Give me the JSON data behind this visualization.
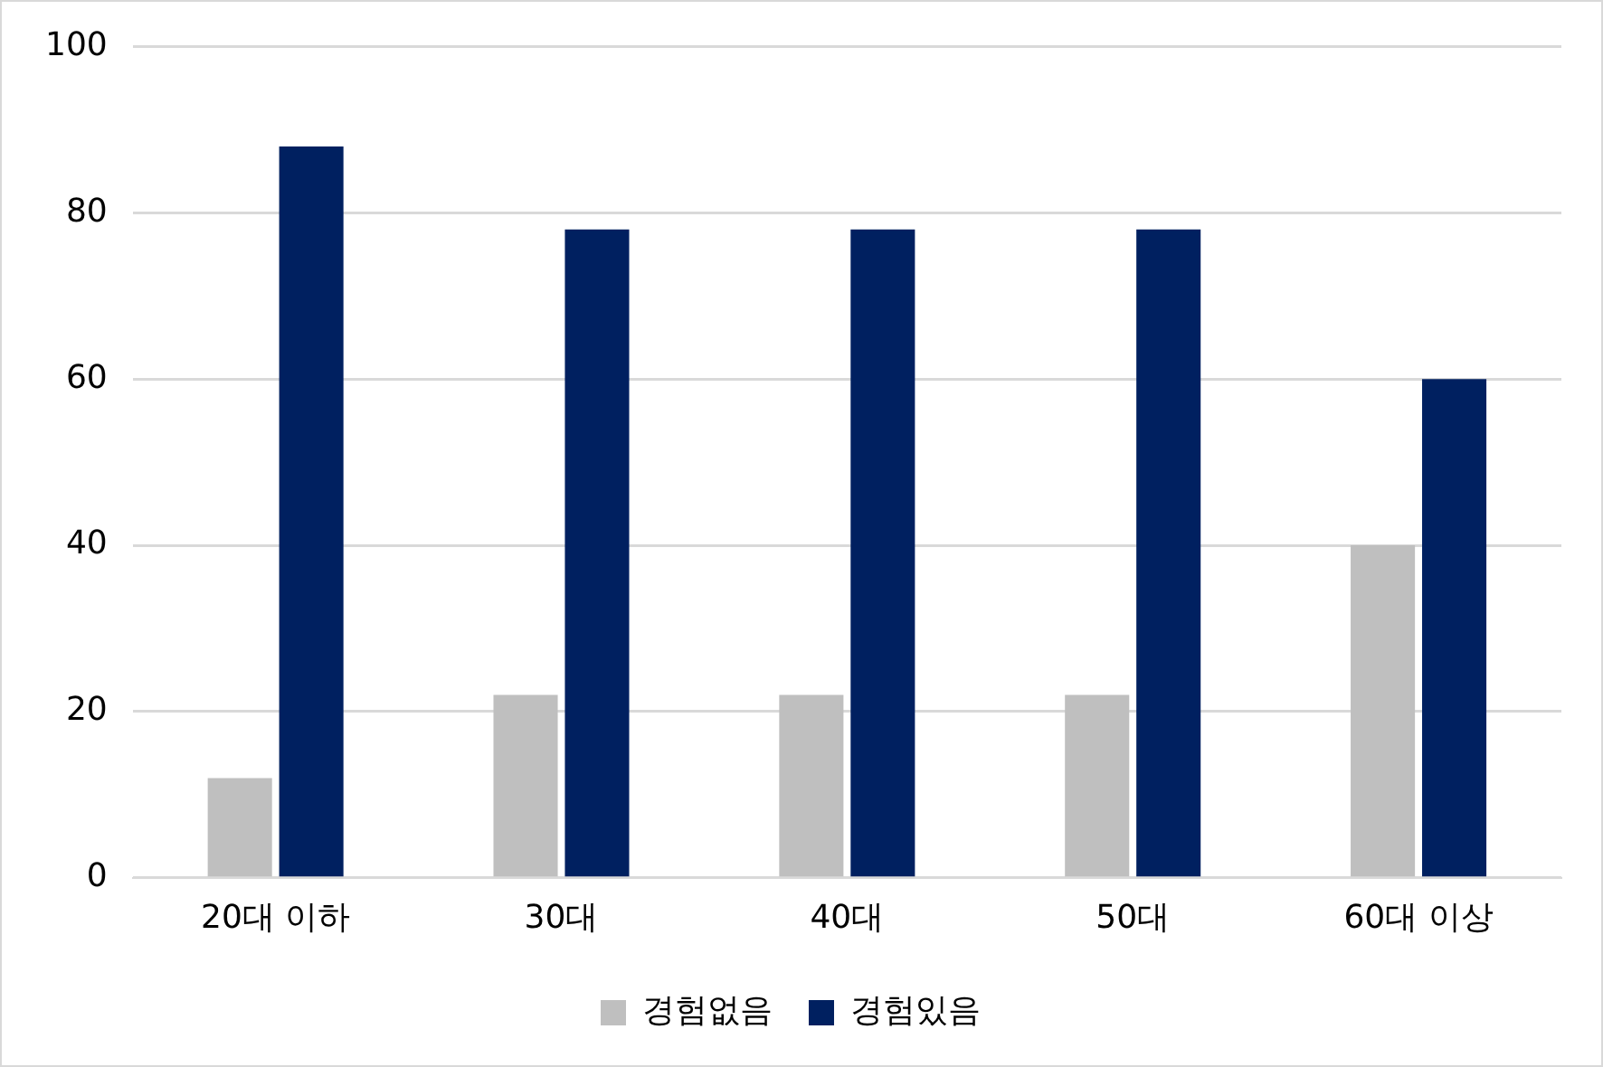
{
  "chart_data": {
    "type": "bar",
    "categories": [
      "20대 이하",
      "30대",
      "40대",
      "50대",
      "60대 이상"
    ],
    "series": [
      {
        "name": "경험없음",
        "color": "#bfbfbf",
        "values": [
          12,
          22,
          22,
          22,
          40
        ]
      },
      {
        "name": "경험있음",
        "color": "#002060",
        "values": [
          88,
          78,
          78,
          78,
          60
        ]
      }
    ],
    "ylim": [
      0,
      100
    ],
    "yticks": [
      0,
      20,
      40,
      60,
      80,
      100
    ],
    "grid": "y",
    "legend": "bottom"
  }
}
